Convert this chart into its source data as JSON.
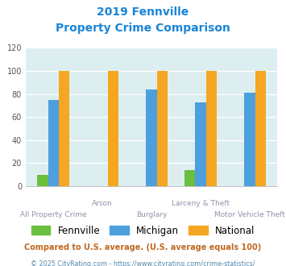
{
  "title_line1": "2019 Fennville",
  "title_line2": "Property Crime Comparison",
  "categories": [
    "All Property Crime",
    "Arson",
    "Burglary",
    "Larceny & Theft",
    "Motor Vehicle Theft"
  ],
  "fennville": [
    10,
    0,
    0,
    14,
    0
  ],
  "michigan": [
    75,
    0,
    84,
    73,
    81
  ],
  "national": [
    100,
    100,
    100,
    100,
    100
  ],
  "fennville_color": "#6abf3f",
  "michigan_color": "#4d9fde",
  "national_color": "#f5a623",
  "bg_color": "#ddeef0",
  "ylim": [
    0,
    120
  ],
  "yticks": [
    0,
    20,
    40,
    60,
    80,
    100,
    120
  ],
  "xlabel_color": "#9b8faa",
  "title_color": "#1a85d6",
  "footnote1": "Compared to U.S. average. (U.S. average equals 100)",
  "footnote2": "© 2025 CityRating.com - https://www.cityrating.com/crime-statistics/",
  "footnote1_color": "#c06820",
  "footnote2_color": "#5588aa",
  "legend_labels": [
    "Fennville",
    "Michigan",
    "National"
  ],
  "bar_width": 0.22
}
